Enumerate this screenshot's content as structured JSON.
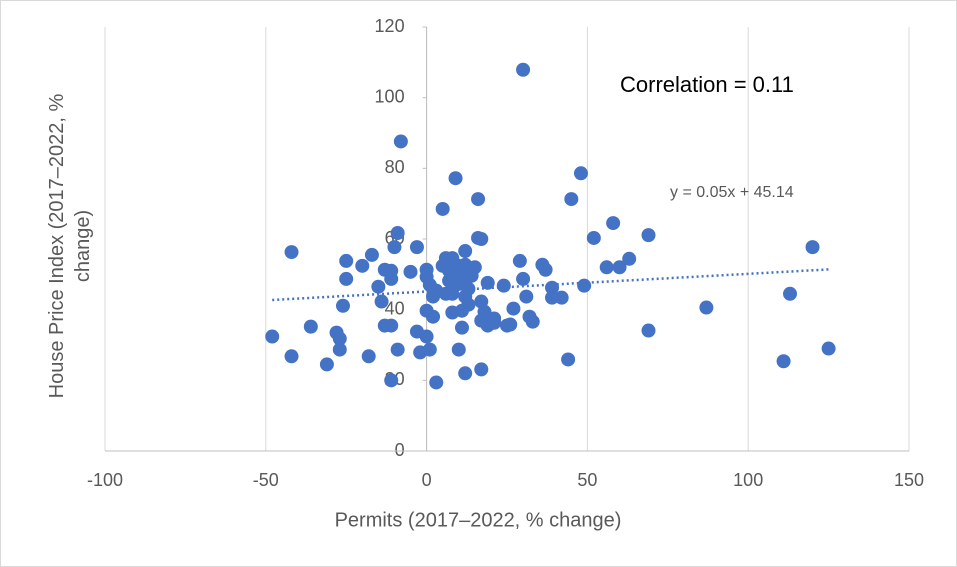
{
  "chart_data": {
    "type": "scatter",
    "x_label": "Permits (2017–2022, % change)",
    "y_label": "House Price Index (2017–2022, % change)",
    "annotation": "Correlation = 0.11",
    "trendline": {
      "label": "y = 0.05x + 45.14",
      "slope": 0.05,
      "intercept": 45.14,
      "color": "#4472c4"
    },
    "xlim": [
      -100,
      150
    ],
    "xticks": [
      -100,
      -50,
      0,
      50,
      100,
      150
    ],
    "ylim": [
      0,
      120
    ],
    "yticks": [
      0,
      20,
      40,
      60,
      80,
      100,
      120
    ],
    "grid": "vertical",
    "series": [
      {
        "color": "#4472c4",
        "x": [
          -48,
          -42,
          -42,
          -36,
          -31,
          -28,
          -27,
          -27,
          -26,
          -25,
          -25,
          -20,
          -18,
          -17,
          -15,
          -14,
          -13,
          -13,
          -11,
          -11,
          -11,
          -11,
          -10,
          -9,
          -8,
          -9,
          -5,
          -3,
          -3,
          -2,
          0,
          0,
          0,
          0,
          1,
          2,
          2,
          3,
          5,
          6,
          6,
          7,
          8,
          8,
          9,
          10,
          10,
          11,
          11,
          12,
          12,
          12,
          13,
          13,
          15,
          16,
          16,
          17,
          17,
          17,
          17,
          18,
          19,
          19,
          21,
          21,
          24,
          25,
          26,
          27,
          29,
          30,
          30,
          31,
          32,
          33,
          36,
          37,
          39,
          39,
          42,
          44,
          45,
          48,
          49,
          52,
          56,
          58,
          60,
          63,
          69,
          69,
          87,
          111,
          113,
          120,
          125,
          1,
          3,
          7,
          9,
          10,
          11,
          12,
          14,
          12,
          5,
          8
        ],
        "values": [
          32.4,
          56.3,
          26.8,
          35.2,
          24.5,
          33.5,
          31.8,
          28.7,
          41.1,
          53.8,
          48.7,
          52.4,
          26.8,
          55.5,
          46.5,
          42.3,
          51.3,
          35.5,
          35.5,
          51,
          48.7,
          20,
          57.7,
          61.7,
          87.6,
          28.7,
          50.7,
          57.7,
          33.8,
          27.9,
          51.3,
          49.3,
          39.7,
          32.4,
          28.7,
          38,
          43.7,
          19.4,
          68.5,
          44.5,
          54.6,
          51,
          44.5,
          39.2,
          77.2,
          28.7,
          52.4,
          34.9,
          39.7,
          22,
          52.7,
          56.6,
          41.4,
          45.9,
          52,
          60.3,
          71.3,
          60,
          36.9,
          23.1,
          42.3,
          39.4,
          47.6,
          35.5,
          36.3,
          37.5,
          46.8,
          35.5,
          35.8,
          40.3,
          53.8,
          107.9,
          48.7,
          43.7,
          38,
          36.6,
          52.7,
          51.3,
          46.2,
          43.4,
          43.4,
          25.9,
          71.3,
          78.6,
          46.8,
          60.3,
          52,
          64.5,
          52,
          54.4,
          61.1,
          34.1,
          40.6,
          25.4,
          44.5,
          57.7,
          29,
          47,
          45.4,
          48.2,
          49.6,
          47.3,
          50.7,
          48.2,
          49.6,
          43.7,
          52.4,
          54.6
        ]
      }
    ]
  }
}
